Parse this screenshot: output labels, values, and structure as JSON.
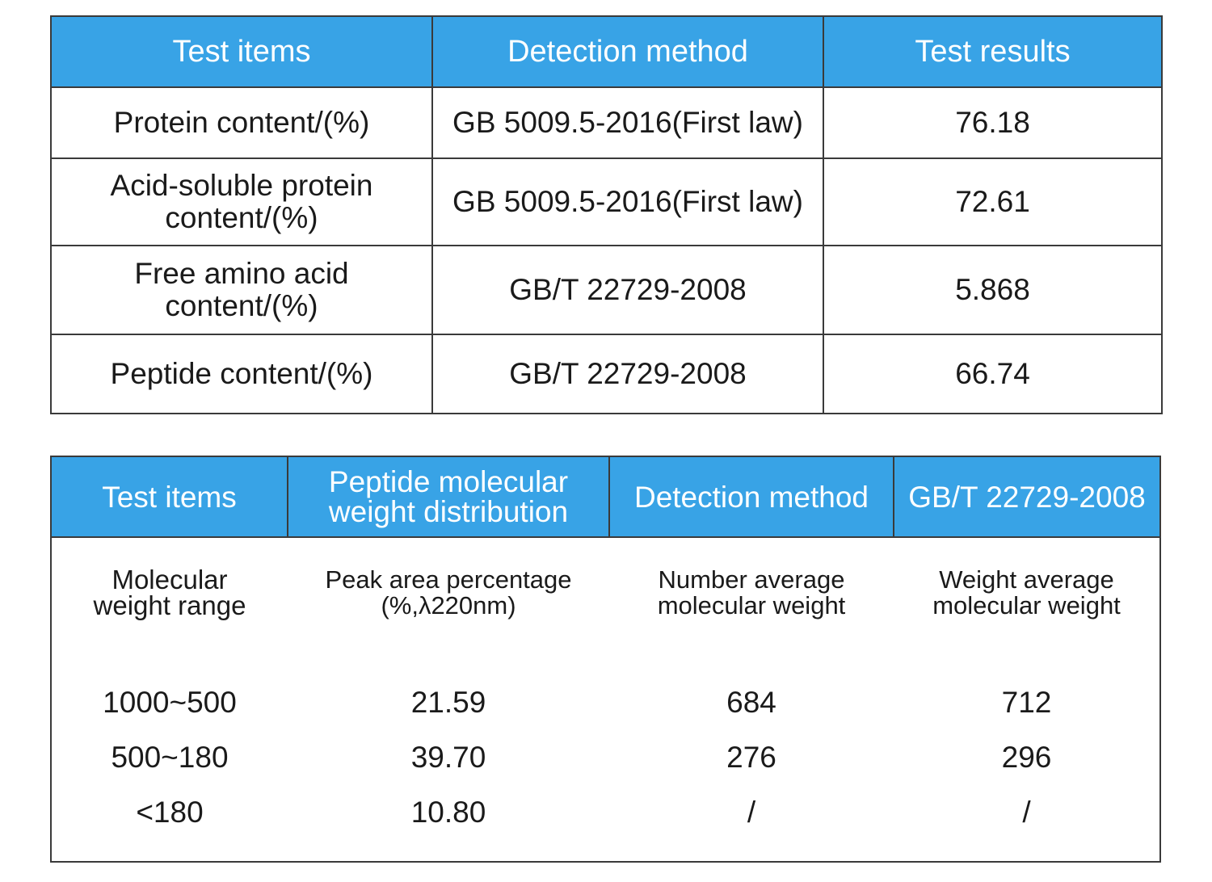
{
  "table1": {
    "headers": [
      "Test items",
      "Detection method",
      "Test results"
    ],
    "rows": [
      {
        "item": "Protein content/(%)",
        "method": "GB 5009.5-2016(First law)",
        "result": "76.18"
      },
      {
        "item": "Acid-soluble protein content/(%)",
        "method": "GB 5009.5-2016(First law)",
        "result": "72.61"
      },
      {
        "item": "Free amino acid content/(%)",
        "method": "GB/T 22729-2008",
        "result": "5.868"
      },
      {
        "item": "Peptide content/(%)",
        "method": "GB/T 22729-2008",
        "result": "66.74"
      }
    ]
  },
  "table2": {
    "headers": [
      "Test items",
      "Peptide molecular weight distribution",
      "Detection method",
      "GB/T 22729-2008"
    ],
    "subheaders": [
      "Molecular weight range",
      "Peak area percentage (%,λ220nm)",
      "Number average molecular weight",
      "Weight average molecular weight"
    ],
    "rows": [
      {
        "range": "1000~500",
        "peak": "21.59",
        "number_avg": "684",
        "weight_avg": "712"
      },
      {
        "range": "500~180",
        "peak": "39.70",
        "number_avg": "276",
        "weight_avg": "296"
      },
      {
        "range": "<180",
        "peak": "10.80",
        "number_avg": "/",
        "weight_avg": "/"
      }
    ]
  },
  "colors": {
    "header_bg": "#38a3e6",
    "header_text": "#ffffff",
    "border": "#3a3a3a"
  }
}
